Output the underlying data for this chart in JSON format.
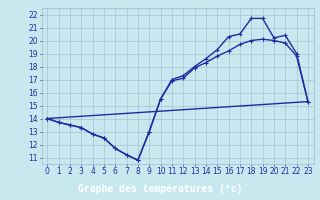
{
  "xlabel": "Graphe des températures (°c)",
  "xlim": [
    -0.5,
    23.5
  ],
  "ylim": [
    10.5,
    22.5
  ],
  "yticks": [
    11,
    12,
    13,
    14,
    15,
    16,
    17,
    18,
    19,
    20,
    21,
    22
  ],
  "xticks": [
    0,
    1,
    2,
    3,
    4,
    5,
    6,
    7,
    8,
    9,
    10,
    11,
    12,
    13,
    14,
    15,
    16,
    17,
    18,
    19,
    20,
    21,
    22,
    23
  ],
  "bg_color": "#c8e8f0",
  "grid_color": "#99bbcc",
  "line_color": "#1a2fa0",
  "line1_y": [
    14.0,
    13.7,
    13.5,
    13.3,
    12.8,
    12.5,
    11.7,
    11.2,
    10.8,
    13.0,
    15.5,
    17.0,
    17.3,
    18.0,
    18.6,
    19.3,
    20.3,
    20.5,
    21.7,
    21.7,
    20.2,
    20.4,
    19.0,
    15.3
  ],
  "line2_y": [
    14.0,
    13.7,
    13.5,
    13.3,
    12.8,
    12.5,
    11.7,
    11.2,
    10.8,
    13.0,
    15.5,
    16.9,
    17.1,
    17.9,
    18.3,
    18.8,
    19.2,
    19.7,
    20.0,
    20.1,
    20.0,
    19.8,
    18.8,
    15.3
  ],
  "line3_x": [
    0,
    23
  ],
  "line3_y": [
    14.0,
    15.3
  ],
  "tick_fontsize": 5.5,
  "xlabel_fontsize": 7,
  "lw": 1.0,
  "marker_size": 3.5,
  "bar_color": "#2244aa",
  "tick_color": "#1a2fa0"
}
